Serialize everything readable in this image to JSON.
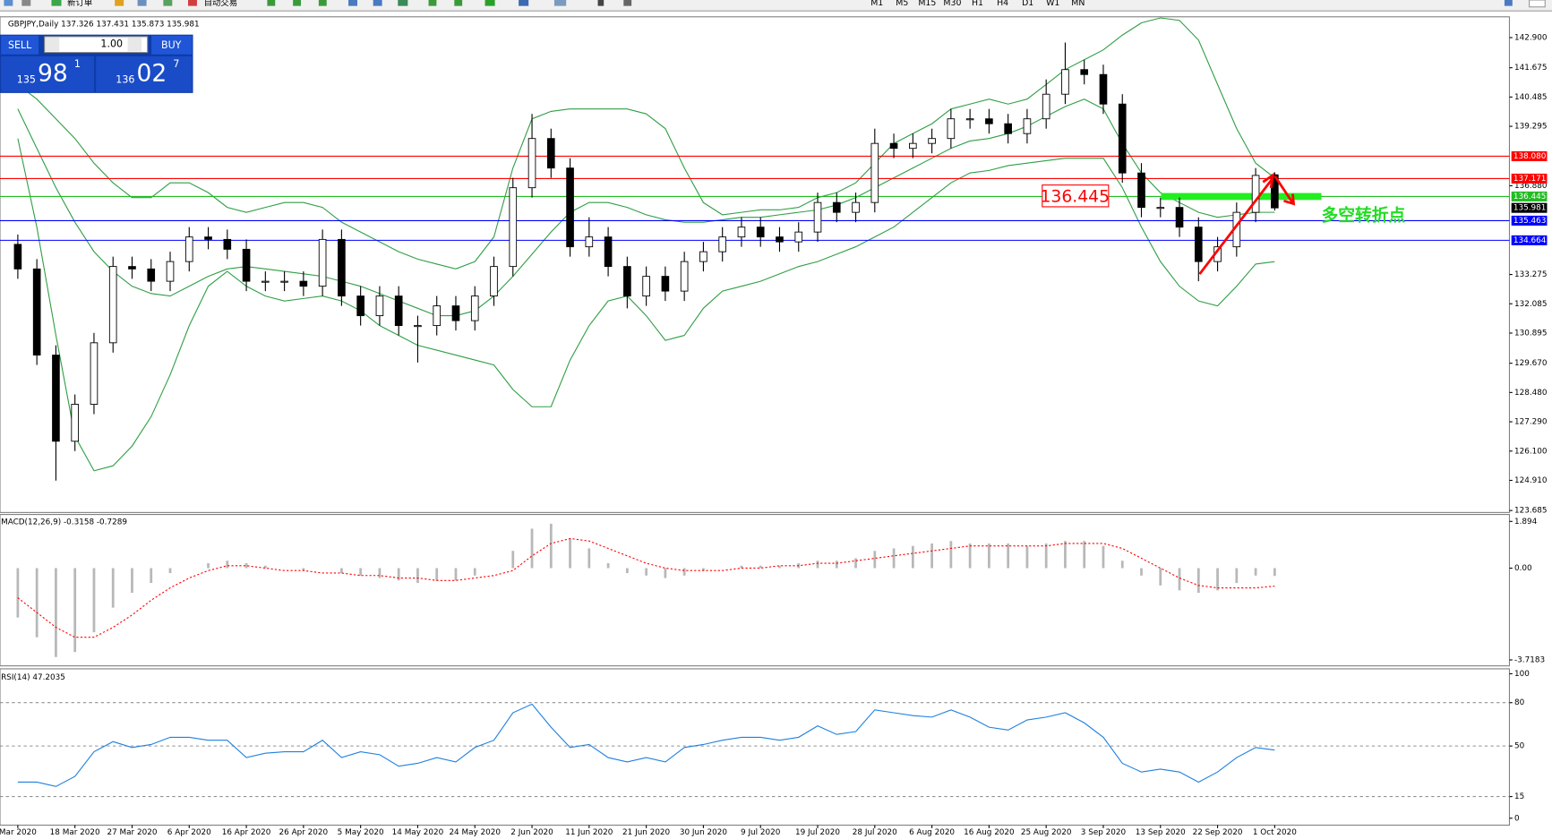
{
  "toolbar": {
    "buttons": [
      "新订单",
      "自动交易"
    ],
    "timeframes": [
      "M1",
      "M5",
      "M15",
      "M30",
      "H1",
      "H4",
      "D1",
      "W1",
      "MN"
    ]
  },
  "trade_panel": {
    "sell": "SELL",
    "volume": "1.00",
    "buy": "BUY",
    "bid": {
      "prefix": "135",
      "big": "98",
      "sup": "1"
    },
    "ask": {
      "prefix": "136",
      "big": "02",
      "sup": "7"
    }
  },
  "chart_data": [
    {
      "type": "candlestick",
      "title": "GBPJPY,Daily",
      "categories": [
        "Mar 2020",
        null,
        null,
        "18 Mar 2020",
        null,
        null,
        "27 Mar 2020",
        null,
        null,
        "6 Apr 2020",
        null,
        null,
        "16 Apr 2020",
        null,
        null,
        "26 Apr 2020",
        null,
        null,
        "5 May 2020",
        null,
        null,
        "14 May 2020",
        null,
        null,
        "24 May 2020",
        null,
        null,
        "2 Jun 2020",
        null,
        null,
        "11 Jun 2020",
        null,
        null,
        "21 Jun 2020",
        null,
        null,
        "30 Jun 2020",
        null,
        null,
        "9 Jul 2020",
        null,
        null,
        "19 Jul 2020",
        null,
        null,
        "28 Jul 2020",
        null,
        null,
        "6 Aug 2020",
        null,
        null,
        "16 Aug 2020",
        null,
        null,
        "25 Aug 2020",
        null,
        null,
        "3 Sep 2020",
        null,
        null,
        "13 Sep 2020",
        null,
        null,
        "22 Sep 2020",
        null,
        null,
        "1 Oct 2020"
      ],
      "open": [
        134.5,
        133.5,
        130.0,
        126.5,
        128.0,
        130.5,
        133.6,
        133.5,
        133.0,
        133.8,
        134.8,
        134.7,
        134.3,
        133.0,
        133.0,
        133.0,
        132.8,
        134.7,
        132.4,
        131.6,
        132.4,
        131.2,
        131.2,
        132.0,
        131.4,
        132.4,
        133.6,
        136.8,
        138.8,
        137.6,
        134.4,
        134.8,
        133.6,
        132.4,
        133.2,
        132.6,
        133.8,
        134.2,
        134.8,
        135.2,
        134.8,
        134.6,
        135.0,
        136.2,
        135.8,
        136.2,
        138.6,
        138.4,
        138.6,
        138.8,
        139.6,
        139.6,
        139.4,
        139.0,
        139.6,
        140.6,
        141.6,
        141.4,
        140.2,
        137.4,
        136.0,
        136.0,
        135.2,
        133.8,
        134.4,
        135.8,
        137.326
      ],
      "high": [
        134.9,
        133.9,
        130.4,
        128.4,
        130.9,
        134.0,
        134.0,
        133.9,
        134.2,
        135.2,
        135.2,
        135.1,
        134.7,
        133.4,
        133.4,
        133.4,
        135.1,
        135.1,
        132.8,
        132.8,
        132.8,
        131.6,
        132.4,
        132.4,
        132.8,
        134.0,
        137.2,
        139.8,
        139.2,
        138.0,
        135.6,
        135.2,
        134.0,
        133.6,
        133.6,
        134.2,
        134.6,
        135.2,
        135.6,
        135.6,
        135.2,
        135.4,
        136.6,
        136.6,
        136.6,
        139.2,
        139.0,
        139.0,
        139.2,
        140.0,
        140.0,
        140.0,
        139.8,
        140.0,
        141.2,
        142.7,
        142.0,
        141.8,
        140.6,
        137.8,
        136.4,
        136.4,
        135.6,
        134.8,
        136.2,
        137.6,
        137.431
      ],
      "low": [
        133.1,
        129.6,
        124.9,
        126.1,
        127.6,
        130.1,
        133.1,
        132.6,
        132.6,
        133.4,
        134.3,
        133.9,
        132.6,
        132.6,
        132.6,
        132.4,
        132.4,
        132.0,
        131.2,
        131.2,
        130.8,
        129.7,
        130.8,
        131.0,
        131.0,
        132.0,
        133.2,
        136.4,
        137.2,
        134.0,
        134.0,
        133.2,
        131.9,
        132.0,
        132.2,
        132.2,
        133.4,
        133.8,
        134.4,
        134.4,
        134.2,
        134.2,
        134.6,
        135.4,
        135.4,
        135.8,
        138.0,
        138.0,
        138.2,
        138.4,
        139.2,
        139.0,
        138.6,
        138.6,
        139.2,
        140.2,
        141.0,
        139.8,
        137.0,
        135.6,
        135.6,
        134.8,
        133.0,
        133.4,
        134.0,
        135.4,
        135.873
      ],
      "close": [
        133.5,
        130.0,
        126.5,
        128.0,
        130.5,
        133.6,
        133.5,
        133.0,
        133.8,
        134.8,
        134.7,
        134.3,
        133.0,
        133.0,
        133.0,
        132.8,
        134.7,
        132.4,
        131.6,
        132.4,
        131.2,
        131.2,
        132.0,
        131.4,
        132.4,
        133.6,
        136.8,
        138.8,
        137.6,
        134.4,
        134.8,
        133.6,
        132.4,
        133.2,
        132.6,
        133.8,
        134.2,
        134.8,
        135.2,
        134.8,
        134.6,
        135.0,
        136.2,
        135.8,
        136.2,
        138.6,
        138.4,
        138.6,
        138.8,
        139.6,
        139.6,
        139.4,
        139.0,
        139.6,
        140.6,
        141.6,
        141.4,
        140.2,
        137.4,
        136.0,
        136.0,
        135.2,
        133.8,
        134.4,
        135.8,
        137.3,
        135.981
      ],
      "bands": {
        "color": "#2f9e44",
        "upper": [
          141.0,
          140.4,
          139.6,
          138.8,
          137.8,
          137.0,
          136.4,
          136.4,
          137.0,
          137.0,
          136.6,
          136.0,
          135.8,
          136.0,
          136.2,
          136.2,
          136.0,
          135.4,
          135.0,
          134.6,
          134.2,
          133.9,
          133.7,
          133.5,
          133.8,
          134.8,
          137.6,
          139.6,
          139.9,
          140.0,
          140.0,
          140.0,
          140.0,
          139.8,
          139.2,
          137.6,
          136.2,
          135.7,
          135.8,
          135.9,
          135.9,
          136.0,
          136.4,
          136.6,
          137.0,
          137.8,
          138.6,
          139.0,
          139.4,
          140.0,
          140.2,
          140.4,
          140.2,
          140.4,
          141.0,
          141.6,
          142.0,
          142.4,
          143.0,
          143.5,
          143.7,
          143.6,
          142.8,
          141.0,
          139.2,
          137.8,
          137.2
        ],
        "middle": [
          140.0,
          138.4,
          136.8,
          135.4,
          134.2,
          133.4,
          132.8,
          132.5,
          132.4,
          132.8,
          133.2,
          133.5,
          133.6,
          133.5,
          133.4,
          133.3,
          133.2,
          133.0,
          132.8,
          132.5,
          132.2,
          131.9,
          131.6,
          131.6,
          131.8,
          132.4,
          133.2,
          134.1,
          135.0,
          135.8,
          136.2,
          136.2,
          136.0,
          135.7,
          135.5,
          135.4,
          135.4,
          135.5,
          135.6,
          135.6,
          135.7,
          135.8,
          135.9,
          136.1,
          136.4,
          136.8,
          137.2,
          137.6,
          138.0,
          138.4,
          138.7,
          138.8,
          139.0,
          139.3,
          139.7,
          140.1,
          140.4,
          140.0,
          138.6,
          137.4,
          136.6,
          136.2,
          135.8,
          135.6,
          135.7,
          135.8,
          135.8
        ],
        "lower": [
          138.8,
          135.2,
          130.8,
          126.7,
          125.3,
          125.5,
          126.3,
          127.5,
          129.2,
          131.2,
          132.8,
          133.4,
          132.8,
          132.4,
          132.2,
          132.3,
          132.4,
          132.2,
          131.8,
          131.2,
          130.8,
          130.4,
          130.2,
          130.0,
          129.8,
          129.6,
          128.6,
          127.9,
          127.9,
          129.8,
          131.2,
          132.2,
          132.4,
          131.6,
          130.6,
          130.8,
          131.9,
          132.6,
          132.8,
          133.0,
          133.3,
          133.6,
          133.8,
          134.1,
          134.4,
          134.8,
          135.2,
          135.8,
          136.4,
          137.0,
          137.4,
          137.5,
          137.7,
          137.8,
          137.9,
          138.0,
          138.0,
          138.0,
          136.8,
          135.2,
          133.8,
          132.8,
          132.2,
          132.0,
          132.8,
          133.7,
          133.8
        ]
      },
      "horizontal_lines": [
        {
          "value": 138.08,
          "label": "138.080",
          "color": "#ff0000"
        },
        {
          "value": 137.171,
          "label": "137.171",
          "color": "#ff0000"
        },
        {
          "value": 136.445,
          "label": "136.445",
          "color": "#22bb22"
        },
        {
          "value": 135.463,
          "label": "135.463",
          "color": "#0000ff"
        },
        {
          "value": 134.664,
          "label": "134.664",
          "color": "#0000ff"
        }
      ],
      "annotation": "多空转折点",
      "ylim": [
        123.685,
        142.9
      ],
      "yticks": [
        {
          "value": 142.9,
          "label": "142.900"
        },
        {
          "value": 141.675,
          "label": "141.675"
        },
        {
          "value": 140.485,
          "label": "140.485"
        },
        {
          "value": 139.295,
          "label": "139.295"
        },
        {
          "value": 136.88,
          "label": "136.880"
        },
        {
          "value": 133.275,
          "label": "133.275"
        },
        {
          "value": 132.085,
          "label": "132.085"
        },
        {
          "value": 130.895,
          "label": "130.895"
        },
        {
          "value": 129.67,
          "label": "129.670"
        },
        {
          "value": 128.48,
          "label": "128.480"
        },
        {
          "value": 127.29,
          "label": "127.290"
        },
        {
          "value": 126.1,
          "label": "126.100"
        },
        {
          "value": 124.91,
          "label": "124.910"
        },
        {
          "value": 123.685,
          "label": "123.685"
        }
      ]
    },
    {
      "type": "macd",
      "title": "MACD(12,26,9)",
      "color": "#b8b8b8",
      "signal_color": "#ff0000",
      "values": [
        -2.0,
        -2.8,
        -3.6,
        -3.4,
        -2.6,
        -1.6,
        -1.0,
        -0.6,
        -0.2,
        0.0,
        0.2,
        0.3,
        0.2,
        0.1,
        0.0,
        -0.1,
        0.0,
        -0.2,
        -0.3,
        -0.4,
        -0.5,
        -0.6,
        -0.5,
        -0.5,
        -0.3,
        0.0,
        0.7,
        1.6,
        1.8,
        1.2,
        0.8,
        0.2,
        -0.2,
        -0.3,
        -0.4,
        -0.3,
        -0.1,
        0.0,
        0.1,
        0.1,
        0.1,
        0.2,
        0.3,
        0.3,
        0.4,
        0.7,
        0.8,
        0.9,
        1.0,
        1.1,
        1.0,
        1.0,
        1.0,
        0.9,
        1.0,
        1.1,
        1.1,
        0.9,
        0.3,
        -0.3,
        -0.7,
        -0.9,
        -1.0,
        -0.9,
        -0.6,
        -0.3,
        -0.3158
      ],
      "signal": [
        -1.2,
        -1.8,
        -2.4,
        -2.8,
        -2.8,
        -2.4,
        -1.9,
        -1.3,
        -0.8,
        -0.4,
        -0.1,
        0.1,
        0.1,
        0.0,
        -0.1,
        -0.1,
        -0.2,
        -0.2,
        -0.3,
        -0.3,
        -0.4,
        -0.4,
        -0.5,
        -0.5,
        -0.4,
        -0.3,
        -0.1,
        0.5,
        1.0,
        1.2,
        1.1,
        0.8,
        0.5,
        0.2,
        0.0,
        -0.1,
        -0.1,
        -0.1,
        0.0,
        0.0,
        0.1,
        0.1,
        0.2,
        0.2,
        0.3,
        0.4,
        0.5,
        0.6,
        0.7,
        0.8,
        0.9,
        0.9,
        0.9,
        0.9,
        0.9,
        1.0,
        1.0,
        1.0,
        0.8,
        0.4,
        0.0,
        -0.4,
        -0.7,
        -0.8,
        -0.8,
        -0.8,
        -0.7289
      ],
      "ylim": [
        -3.7183,
        1.894
      ],
      "yticks": [
        1.894,
        {
          "value": 0,
          "label": "0.00"
        },
        -3.7183
      ]
    },
    {
      "type": "line",
      "title": "RSI(14)",
      "color": "#1e7fe0",
      "values": [
        25,
        25,
        22,
        29,
        46,
        53,
        49,
        51,
        56,
        56,
        54,
        54,
        42,
        45,
        46,
        46,
        54,
        42,
        46,
        44,
        36,
        38,
        42,
        39,
        49,
        54,
        73,
        79,
        63,
        49,
        51,
        42,
        39,
        42,
        39,
        49,
        51,
        54,
        56,
        56,
        54,
        56,
        64,
        58,
        60,
        75,
        73,
        71,
        70,
        75,
        70,
        63,
        61,
        68,
        70,
        73,
        66,
        56,
        38,
        32,
        34,
        32,
        25,
        32,
        42,
        49,
        47.2035
      ],
      "ylim": [
        0,
        100
      ],
      "yticks": [
        0,
        15,
        50,
        80,
        100
      ],
      "levels": [
        15,
        50,
        80
      ]
    }
  ]
}
